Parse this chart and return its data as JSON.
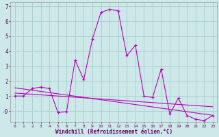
{
  "xlabel": "Windchill (Refroidissement éolien,°C)",
  "background_color": "#cce8e8",
  "grid_color": "#aacccc",
  "line_color": "#bb00bb",
  "x_series": [
    0,
    1,
    2,
    3,
    4,
    5,
    6,
    7,
    8,
    9,
    10,
    11,
    12,
    13,
    14,
    15,
    16,
    17,
    18,
    19,
    20,
    21,
    22,
    23
  ],
  "y_main": [
    1.0,
    1.0,
    1.5,
    1.6,
    1.5,
    -0.1,
    -0.05,
    3.4,
    2.1,
    4.8,
    6.6,
    6.8,
    6.7,
    3.7,
    4.4,
    1.0,
    0.9,
    2.8,
    -0.2,
    0.85,
    -0.3,
    -0.55,
    -0.65,
    -0.3
  ],
  "y_reg1": [
    1.55,
    1.47,
    1.39,
    1.31,
    1.23,
    1.15,
    1.07,
    0.99,
    0.91,
    0.83,
    0.75,
    0.67,
    0.59,
    0.51,
    0.43,
    0.35,
    0.27,
    0.19,
    0.11,
    0.03,
    -0.05,
    -0.13,
    -0.21,
    -0.29
  ],
  "y_reg2": [
    1.2,
    1.16,
    1.12,
    1.08,
    1.04,
    1.0,
    0.96,
    0.92,
    0.88,
    0.84,
    0.8,
    0.76,
    0.72,
    0.68,
    0.64,
    0.6,
    0.56,
    0.52,
    0.48,
    0.44,
    0.4,
    0.36,
    0.32,
    0.28
  ],
  "ylim": [
    -0.75,
    7.3
  ],
  "xlim": [
    -0.5,
    23.5
  ],
  "yticks": [
    0,
    1,
    2,
    3,
    4,
    5,
    6,
    7
  ],
  "ytick_labels": [
    "-0",
    "1",
    "2",
    "3",
    "4",
    "5",
    "6",
    "7"
  ],
  "xticks": [
    0,
    1,
    2,
    3,
    4,
    5,
    6,
    7,
    8,
    9,
    10,
    11,
    12,
    13,
    14,
    15,
    16,
    17,
    18,
    19,
    20,
    21,
    22,
    23
  ]
}
